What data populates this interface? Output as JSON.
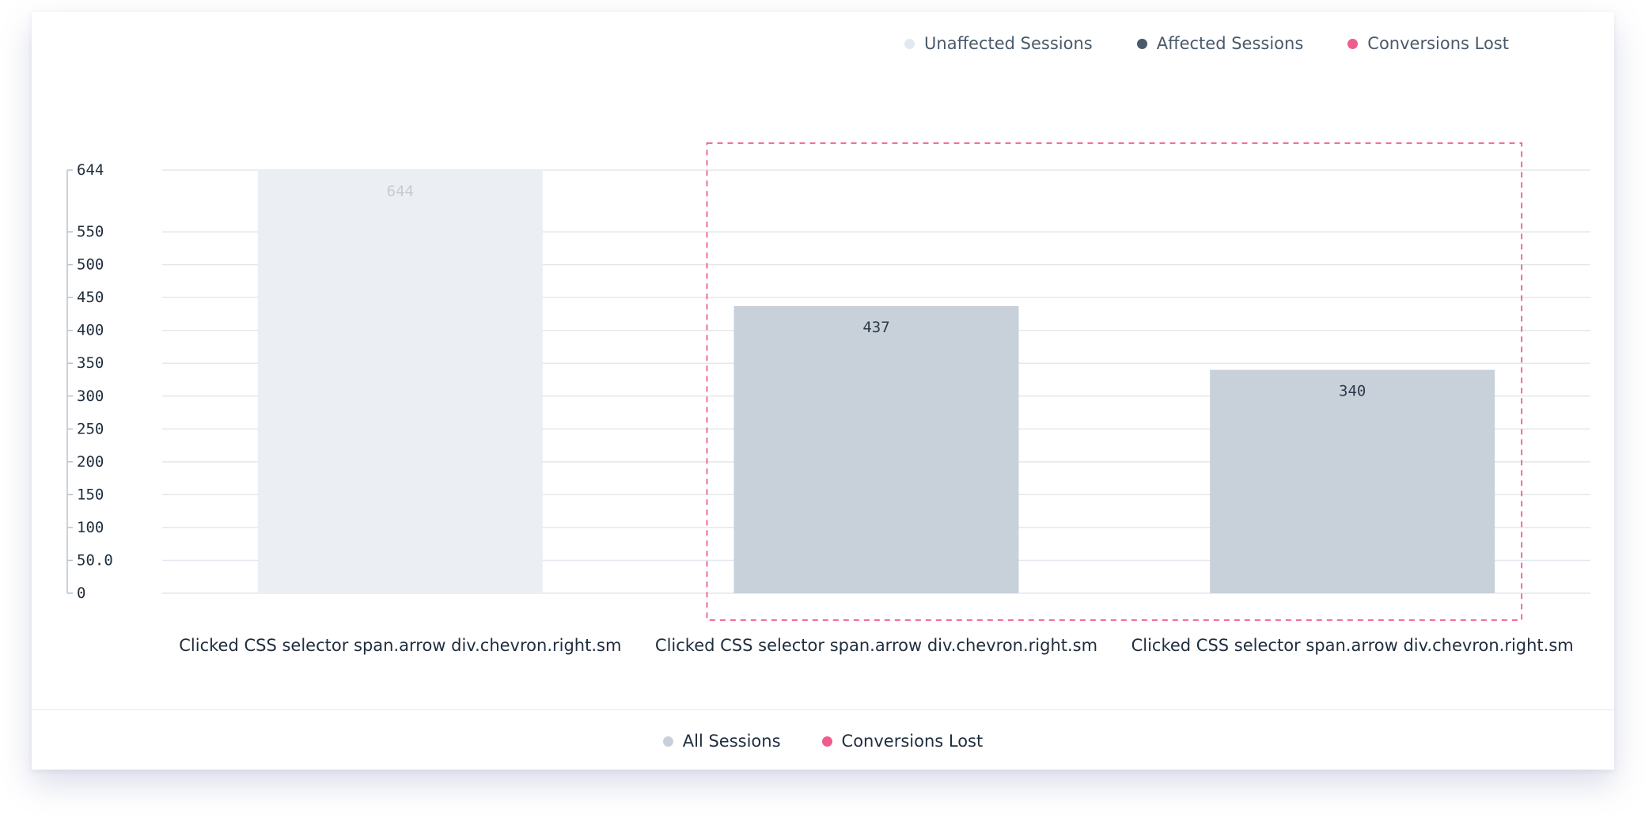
{
  "top_legend": [
    {
      "label": "Unaffected Sessions",
      "color": "#e3e8ee"
    },
    {
      "label": "Affected Sessions",
      "color": "#4a5a6b"
    },
    {
      "label": "Conversions Lost",
      "color": "#ef5c8e"
    }
  ],
  "bottom_legend": [
    {
      "label": "All Sessions",
      "color": "#c8d1da"
    },
    {
      "label": "Conversions Lost",
      "color": "#ef5c8e"
    }
  ],
  "colors": {
    "unaffected_bar": "#ebeff3",
    "affected_bar": "#c8d1da",
    "highlight_border": "#ef5c8e",
    "grid": "#e3e8ee",
    "axis": "#b8c2cc"
  },
  "chart_data": {
    "type": "bar",
    "categories": [
      "Clicked CSS selector span.arrow div.chevron.right.sm",
      "Clicked CSS selector span.arrow div.chevron.right.sm",
      "Clicked CSS selector span.arrow div.chevron.right.sm"
    ],
    "values": [
      644,
      437,
      340
    ],
    "bar_series": [
      "Unaffected Sessions",
      "All Sessions",
      "All Sessions"
    ],
    "data_labels": [
      "644",
      "437",
      "340"
    ],
    "y_ticks": [
      0,
      50,
      100,
      150,
      200,
      250,
      300,
      350,
      400,
      450,
      500,
      550,
      644
    ],
    "y_tick_labels": [
      "0",
      "50.0",
      "100",
      "150",
      "200",
      "250",
      "300",
      "350",
      "400",
      "450",
      "500",
      "550",
      "644"
    ],
    "ylim": [
      0,
      644
    ],
    "grid": true,
    "highlighted_categories": [
      1,
      2
    ],
    "legend_placement": "top-right",
    "title": "",
    "xlabel": "",
    "ylabel": ""
  }
}
